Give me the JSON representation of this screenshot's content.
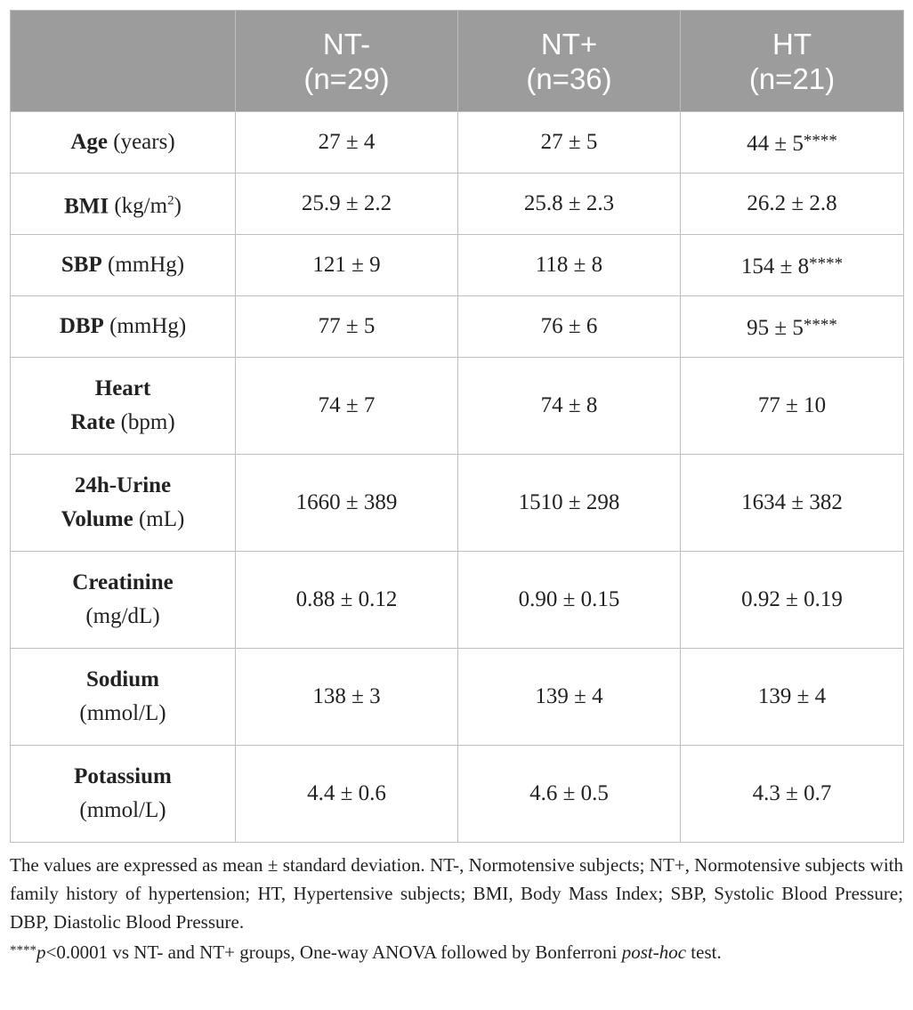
{
  "header": {
    "blank": "",
    "columns": [
      {
        "name": "NT-",
        "n": "(n=29)"
      },
      {
        "name": "NT+",
        "n": "(n=36)"
      },
      {
        "name": "HT",
        "n": "(n=21)"
      }
    ]
  },
  "rows": [
    {
      "label": "Age",
      "unit": "(years)",
      "values": [
        "27 ± 4",
        "27 ± 5",
        "44 ± 5"
      ],
      "ht_sig": "****"
    },
    {
      "label": "BMI",
      "unit": "(kg/m",
      "unit_sup": "2",
      "unit_end": ")",
      "values": [
        "25.9 ± 2.2",
        "25.8 ± 2.3",
        "26.2 ± 2.8"
      ],
      "ht_sig": ""
    },
    {
      "label": "SBP",
      "unit": "(mmHg)",
      "values": [
        "121 ± 9",
        "118 ± 8",
        "154 ± 8"
      ],
      "ht_sig": "****"
    },
    {
      "label": "DBP",
      "unit": "(mmHg)",
      "values": [
        "77 ± 5",
        "76 ± 6",
        "95 ± 5"
      ],
      "ht_sig": "****"
    },
    {
      "label_line1": "Heart",
      "label_line2": "Rate",
      "unit": "(bpm)",
      "values": [
        "74 ± 7",
        "74 ± 8",
        "77 ± 10"
      ]
    },
    {
      "label_line1": "24h-Urine",
      "label_line2": "Volume",
      "unit": "(mL)",
      "values": [
        "1660 ± 389",
        "1510 ± 298",
        "1634 ± 382"
      ]
    },
    {
      "label": "Creatinine",
      "unit": "(mg/dL)",
      "values": [
        "0.88 ± 0.12",
        "0.90 ± 0.15",
        "0.92 ± 0.19"
      ]
    },
    {
      "label": "Sodium",
      "unit": "(mmol/L)",
      "values": [
        "138 ± 3",
        "139 ± 4",
        "139 ± 4"
      ]
    },
    {
      "label": "Potassium",
      "unit": "(mmol/L)",
      "values": [
        "4.4 ± 0.6",
        "4.6 ± 0.5",
        "4.3 ± 0.7"
      ]
    }
  ],
  "footnote": {
    "line1": "The values are expressed as mean ± standard deviation. NT-, Normotensive subjects; NT+, Normotensive subjects with family history of hypertension; HT, Hypertensive subjects; BMI, Body Mass Index; SBP, Systolic Blood Pressure; DBP, Diastolic Blood Pressure.",
    "stars": "****",
    "p": "p",
    "line2_rest": "<0.0001 vs NT- and NT+ groups, One-way ANOVA followed by Bonferroni ",
    "posthoc": "post-hoc",
    "line2_end": " test."
  },
  "colors": {
    "header_bg": "#9c9c9c",
    "header_text": "#ffffff",
    "border": "#bdbdbd"
  }
}
